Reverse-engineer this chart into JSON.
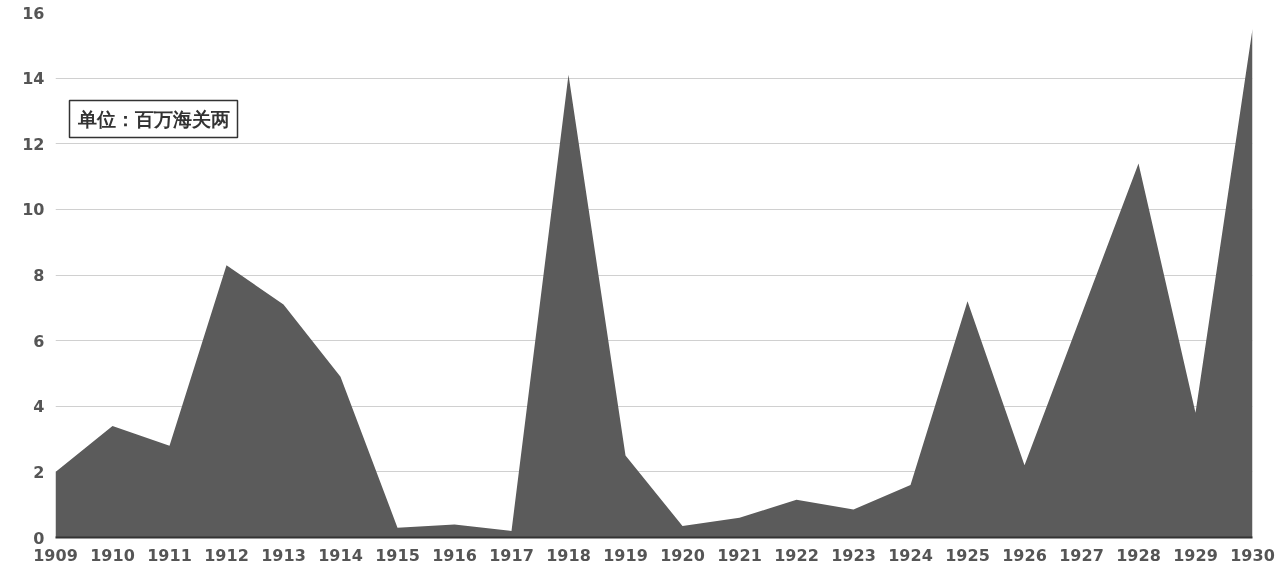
{
  "chart_data": {
    "type": "area",
    "x": [
      1909,
      1910,
      1911,
      1912,
      1913,
      1914,
      1915,
      1916,
      1917,
      1918,
      1919,
      1920,
      1921,
      1922,
      1923,
      1924,
      1925,
      1926,
      1927,
      1928,
      1929,
      1930
    ],
    "series": [
      {
        "color": "#5b5b5b",
        "values": [
          2.0,
          3.4,
          2.8,
          8.3,
          7.1,
          4.9,
          0.3,
          0.4,
          0.2,
          14.1,
          2.5,
          0.35,
          0.6,
          1.15,
          0.85,
          1.6,
          7.2,
          2.2,
          6.8,
          11.4,
          3.8,
          15.5
        ]
      }
    ],
    "xlim": [
      1909,
      1930
    ],
    "xticks": [
      1909,
      1910,
      1911,
      1912,
      1913,
      1914,
      1915,
      1916,
      1917,
      1918,
      1919,
      1920,
      1921,
      1922,
      1923,
      1924,
      1925,
      1926,
      1927,
      1928,
      1929,
      1930
    ],
    "ylim": [
      0,
      16
    ],
    "yticks": [
      0,
      2,
      4,
      6,
      8,
      10,
      12,
      14,
      16
    ],
    "grid": "y",
    "annotations": [
      "单位：百万海关两"
    ]
  }
}
